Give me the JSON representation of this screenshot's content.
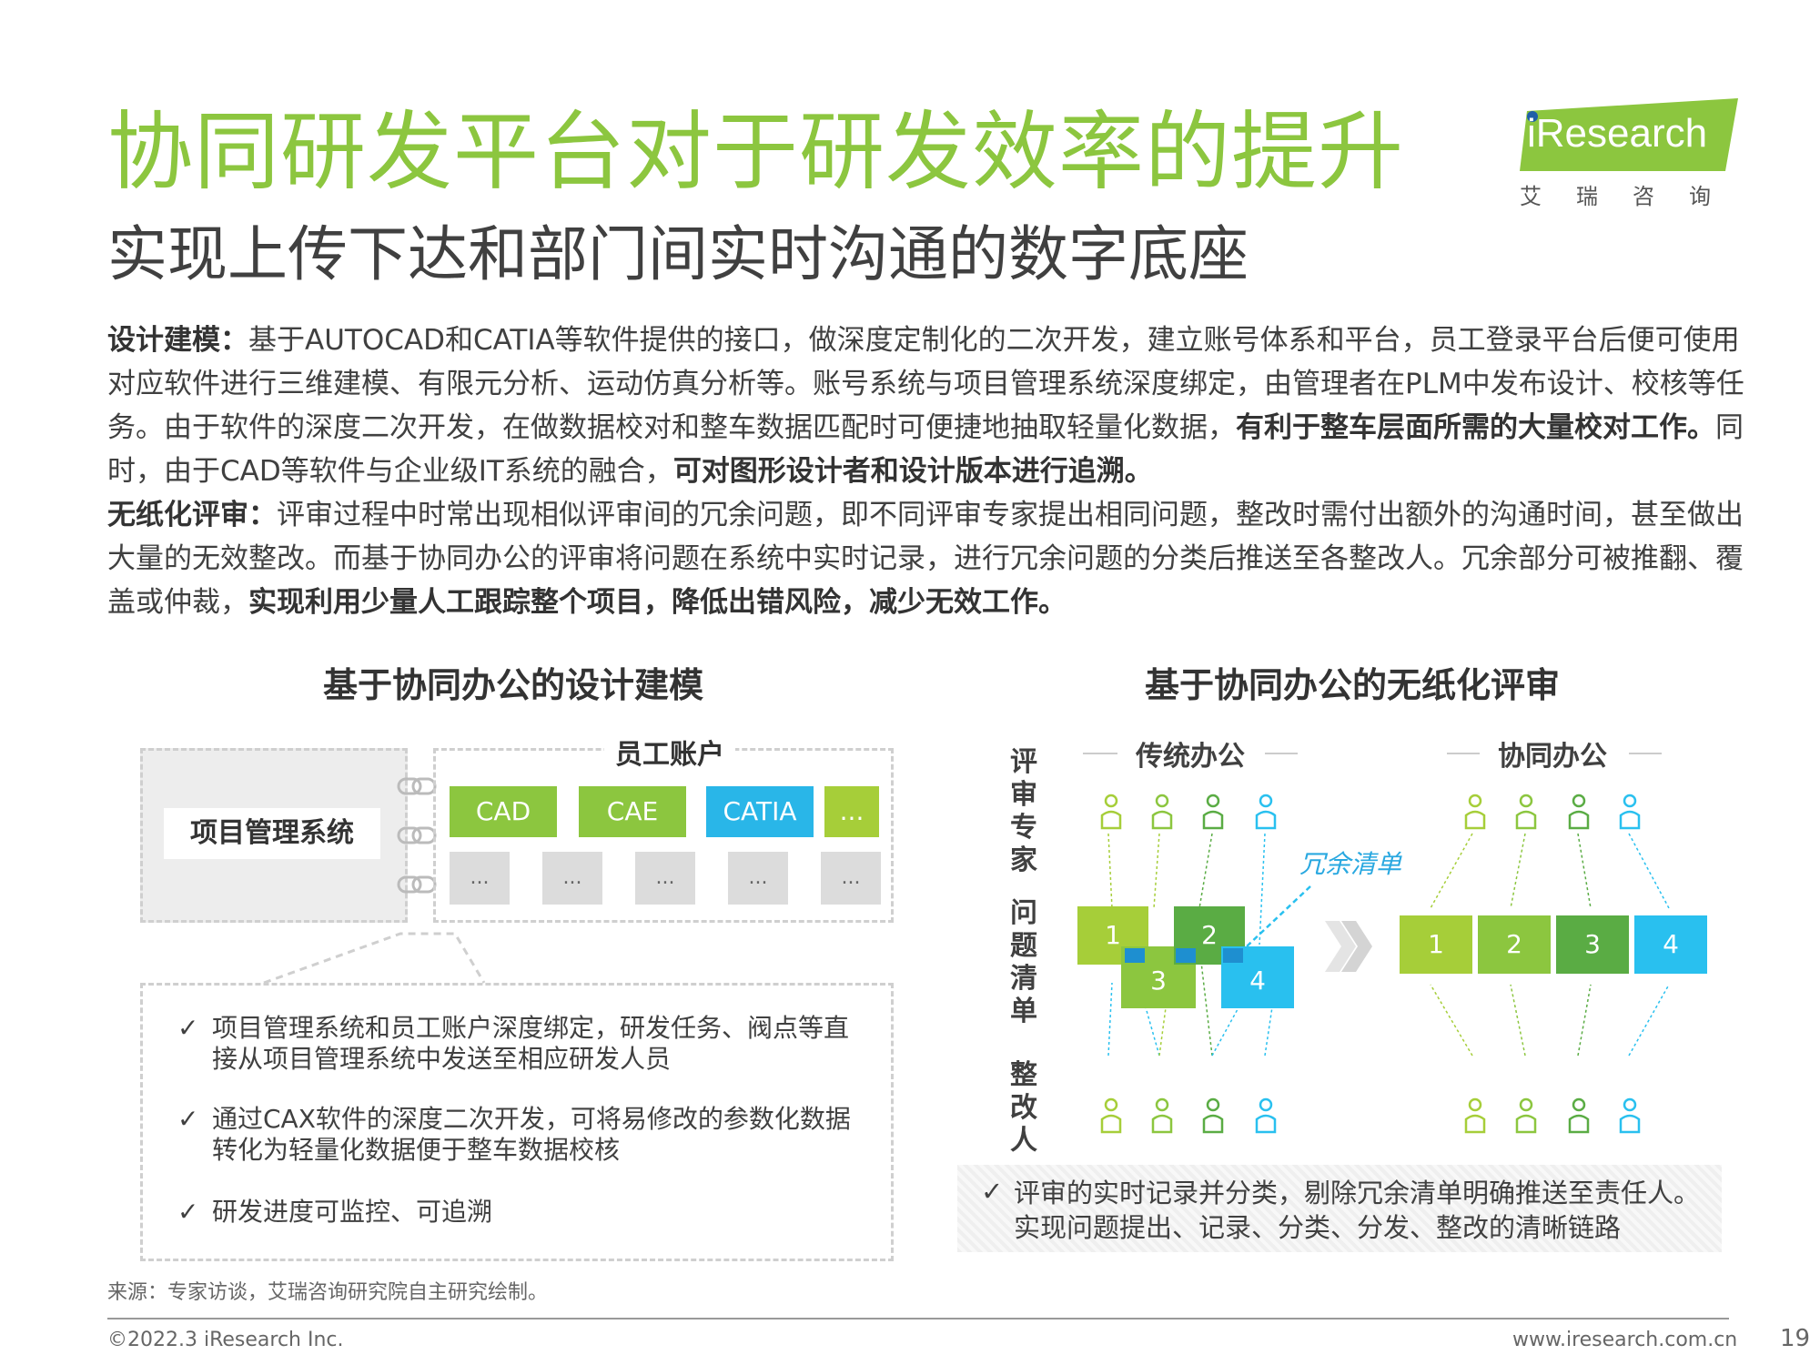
{
  "title": "协同研发平台对于研发效率的提升",
  "subtitle": "实现上传下达和部门间实时沟通的数字底座",
  "logo": {
    "wordmark": "iResearch",
    "chinese": "艾瑞咨询"
  },
  "body": {
    "p1_label": "设计建模：",
    "p1_text": "基于AUTOCAD和CATIA等软件提供的接口，做深度定制化的二次开发，建立账号体系和平台，员工登录平台后便可使用对应软件进行三维建模、有限元分析、运动仿真分析等。账号系统与项目管理系统深度绑定，由管理者在PLM中发布设计、校核等任务。由于软件的深度二次开发，在做数据校对和整车数据匹配时可便捷地抽取轻量化数据，",
    "p1_bold1": "有利于整车层面所需的大量校对工作。",
    "p1_text2": "同时，由于CAD等软件与企业级IT系统的融合，",
    "p1_bold2": "可对图形设计者和设计版本进行追溯。",
    "p2_label": "无纸化评审：",
    "p2_text": "评审过程中时常出现相似评审间的冗余问题，即不同评审专家提出相同问题，整改时需付出额外的沟通时间，甚至做出大量的无效整改。而基于协同办公的评审将问题在系统中实时记录，进行冗余问题的分类后推送至各整改人。冗余部分可被推翻、覆盖或仲裁，",
    "p2_bold": "实现利用少量人工跟踪整个项目，降低出错风险，减少无效工作。"
  },
  "left_panel": {
    "heading": "基于协同办公的设计建模",
    "pm_system": "项目管理系统",
    "account_title": "员工账户",
    "tools": [
      {
        "label": "CAD",
        "color": "#8cc63f"
      },
      {
        "label": "CAE",
        "color": "#8cc63f"
      },
      {
        "label": "CATIA",
        "color": "#29b6e8"
      },
      {
        "label": "...",
        "color": "#a6ce39"
      }
    ],
    "placeholder": "...",
    "check_mark": "✓",
    "checklist": [
      "项目管理系统和员工账户深度绑定，研发任务、阀点等直接从项目管理系统中发送至相应研发人员",
      "通过CAX软件的深度二次开发，可将易修改的参数化数据转化为轻量化数据便于整车数据校核",
      "研发进度可监控、可追溯"
    ]
  },
  "right_panel": {
    "heading": "基于协同办公的无纸化评审",
    "traditional": "传统办公",
    "collaborative": "协同办公",
    "row_labels": [
      "评审专家",
      "问题清单",
      "整改人"
    ],
    "redundant_label": "冗余清单",
    "boxes": [
      "1",
      "2",
      "3",
      "4"
    ],
    "colors": {
      "green_light": "#a6ce39",
      "green_mid": "#8cc63f",
      "green_dark": "#5aac44",
      "blue": "#29c0ef"
    },
    "conclusion": "评审的实时记录并分类，剔除冗余清单明确推送至责任人。实现问题提出、记录、分类、分发、整改的清晰链路"
  },
  "footer": {
    "source": "来源：专家访谈，艾瑞咨询研究院自主研究绘制。",
    "copyright": "©2022.3 iResearch Inc.",
    "website": "www.iresearch.com.cn",
    "page": "19"
  }
}
